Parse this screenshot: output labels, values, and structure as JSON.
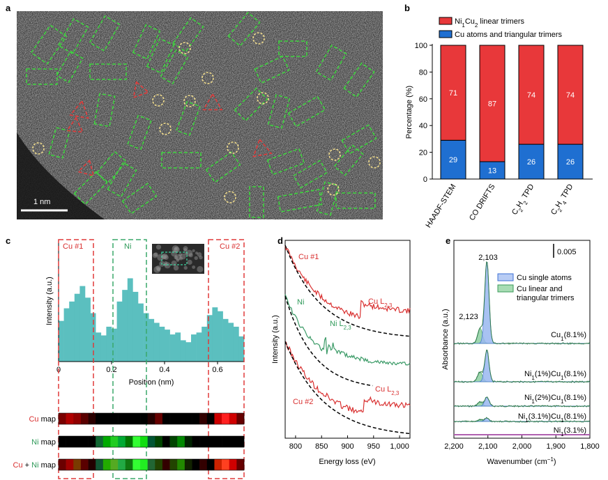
{
  "panel_labels": {
    "a": "a",
    "b": "b",
    "c": "c",
    "d": "d",
    "e": "e"
  },
  "panel_a": {
    "scale_bar": "1 nm"
  },
  "chart_data": [
    {
      "panel": "b",
      "type": "bar",
      "stacked": true,
      "ylabel": "Percentage (%)",
      "ylim": [
        0,
        100
      ],
      "yticks": [
        "0",
        "20",
        "40",
        "60",
        "80",
        "100"
      ],
      "categories": [
        "HAADF-STEM",
        "CO DRIFTS",
        "C2H2 TPD",
        "C2H4 TPD"
      ],
      "category_labels": [
        {
          "main": "HAADF-STEM",
          "sub": "",
          "tail": ""
        },
        {
          "main": "CO DRIFTS",
          "sub": "",
          "tail": ""
        },
        {
          "main": "C",
          "sub": "2",
          "tail": "H",
          "sub2": "2",
          "end": " TPD"
        },
        {
          "main": "C",
          "sub": "2",
          "tail": "H",
          "sub2": "4",
          "end": " TPD"
        }
      ],
      "series": [
        {
          "name": "Cu atoms and triangular trimers",
          "color": "#1f6fd1",
          "values": [
            29,
            13,
            26,
            26
          ]
        },
        {
          "name": "Ni1Cu2 linear trimers",
          "color": "#e8383a",
          "values": [
            71,
            87,
            74,
            74
          ]
        }
      ],
      "legend": [
        {
          "label_main": "Ni",
          "sub1": "1",
          "mid": "Cu",
          "sub2": "2",
          "end": " linear trimers",
          "color": "#e8383a"
        },
        {
          "label_main": "Cu atoms and triangular trimers",
          "color": "#1f6fd1"
        }
      ],
      "legend_placement": "top"
    },
    {
      "panel": "c",
      "type": "bar",
      "xlabel": "Position (nm)",
      "ylabel": "Intensity (a.u.)",
      "xticks": [
        "0",
        "0.2",
        "0.4",
        "0.6"
      ],
      "xlim": [
        0,
        0.7
      ],
      "x": [
        0.01,
        0.03,
        0.05,
        0.07,
        0.09,
        0.11,
        0.13,
        0.15,
        0.17,
        0.19,
        0.21,
        0.23,
        0.25,
        0.27,
        0.29,
        0.31,
        0.33,
        0.35,
        0.37,
        0.39,
        0.41,
        0.43,
        0.45,
        0.47,
        0.49,
        0.51,
        0.53,
        0.55,
        0.57,
        0.59,
        0.61,
        0.63,
        0.65,
        0.67,
        0.69
      ],
      "values": [
        0.42,
        0.55,
        0.62,
        0.7,
        0.78,
        0.66,
        0.5,
        0.3,
        0.27,
        0.36,
        0.34,
        0.62,
        0.74,
        0.86,
        0.72,
        0.6,
        0.5,
        0.44,
        0.4,
        0.36,
        0.33,
        0.28,
        0.3,
        0.22,
        0.2,
        0.28,
        0.3,
        0.36,
        0.48,
        0.56,
        0.52,
        0.44,
        0.4,
        0.36,
        0.26
      ],
      "color": "#5bbfbf",
      "region_labels": [
        {
          "text": "Cu #1",
          "color": "#d93030"
        },
        {
          "text": "Ni",
          "color": "#2f9a5a"
        },
        {
          "text": "Cu #2",
          "color": "#d93030"
        }
      ],
      "maps": [
        {
          "prefix": "Cu",
          "prefix_color": "#d93030",
          "mid": "",
          "mid_color": "",
          "suffix": " map"
        },
        {
          "prefix": "Ni",
          "prefix_color": "#2f9a5a",
          "mid": "",
          "mid_color": "",
          "suffix": " map"
        },
        {
          "prefix": "Cu",
          "prefix_color": "#d93030",
          "plus": " + ",
          "mid": "Ni",
          "mid_color": "#2f9a5a",
          "suffix": " map"
        }
      ]
    },
    {
      "panel": "d",
      "type": "line",
      "xlabel": "Energy loss (eV)",
      "ylabel": "Intensity (a.u.)",
      "xlim": [
        780,
        1020
      ],
      "xticks": [
        "800",
        "850",
        "900",
        "950",
        "1,000"
      ],
      "series_labels": [
        {
          "text": "Cu #1",
          "color": "#d93030"
        },
        {
          "text": "Ni",
          "color": "#2f9a5a"
        },
        {
          "text": "Cu #2",
          "color": "#d93030"
        }
      ],
      "edge_labels": [
        {
          "main": "Cu L",
          "sub": "2,3",
          "color": "#d93030"
        },
        {
          "main": "Ni L",
          "sub": "2,3",
          "color": "#2f9a5a"
        },
        {
          "main": "Cu L",
          "sub": "2,3",
          "color": "#d93030"
        }
      ],
      "colors": {
        "cu": "#d93030",
        "ni": "#3a9a66",
        "fit": "#000000"
      }
    },
    {
      "panel": "e",
      "type": "line",
      "xlabel_main": "Wavenumber (cm",
      "xlabel_sup": "−1",
      "xlabel_end": ")",
      "ylabel": "Absorbance (a.u.)",
      "xlim": [
        2200,
        1800
      ],
      "xticks": [
        "2,200",
        "2,100",
        "2,000",
        "1,900",
        "1,800"
      ],
      "scale_label": "0.005",
      "peak_labels": [
        "2,103",
        "2,123"
      ],
      "legend": [
        {
          "label": "Cu single atoms",
          "color": "#3d6fd6"
        },
        {
          "label": "Cu linear and triangular trimers",
          "line1": "Cu linear and",
          "line2": "triangular trimers",
          "color": "#3a9a5a"
        }
      ],
      "traces": [
        {
          "base": "Ni",
          "s1": "1",
          "mid": "(3.1%)",
          "s2": "",
          "rest": ""
        },
        {
          "base": "Ni",
          "s1": "1",
          "mid": "(3.1%)Cu",
          "s2": "1",
          "rest": "(8.1%)"
        },
        {
          "base": "Ni",
          "s1": "1",
          "mid": "(2%)Cu",
          "s2": "1",
          "rest": "(8.1%)"
        },
        {
          "base": "Ni",
          "s1": "1",
          "mid": "(1%)Cu",
          "s2": "1",
          "rest": "(8.1%)"
        },
        {
          "base": "Cu",
          "s1": "1",
          "mid": "(8.1%)",
          "s2": "",
          "rest": ""
        }
      ]
    }
  ]
}
